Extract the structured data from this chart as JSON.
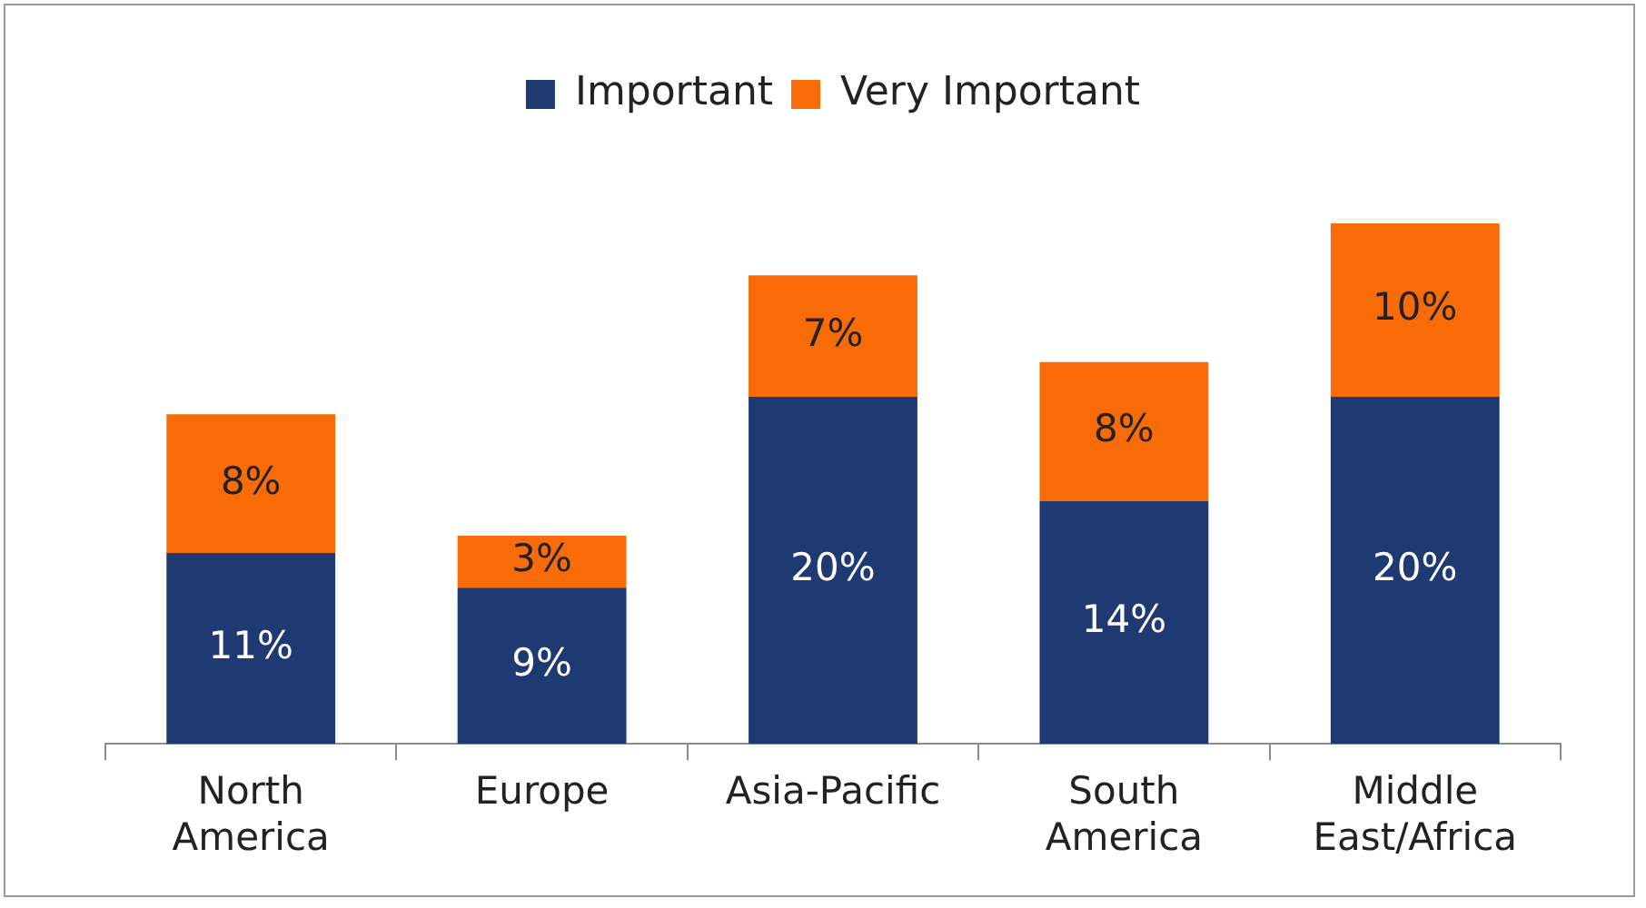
{
  "chart_data": {
    "type": "bar",
    "stacked": true,
    "categories": [
      "North America",
      "Europe",
      "Asia-Pacific",
      "South America",
      "Middle East/Africa"
    ],
    "series": [
      {
        "name": "Important",
        "color": "#1f3a73",
        "values": [
          11,
          9,
          20,
          14,
          20
        ],
        "value_labels": [
          "11%",
          "9%",
          "20%",
          "14%",
          "20%"
        ]
      },
      {
        "name": "Very Important",
        "color": "#f96b07",
        "values": [
          8,
          3,
          7,
          8,
          10
        ],
        "value_labels": [
          "8%",
          "3%",
          "7%",
          "8%",
          "10%"
        ]
      }
    ],
    "tick_labels": "x",
    "legend": "top"
  }
}
